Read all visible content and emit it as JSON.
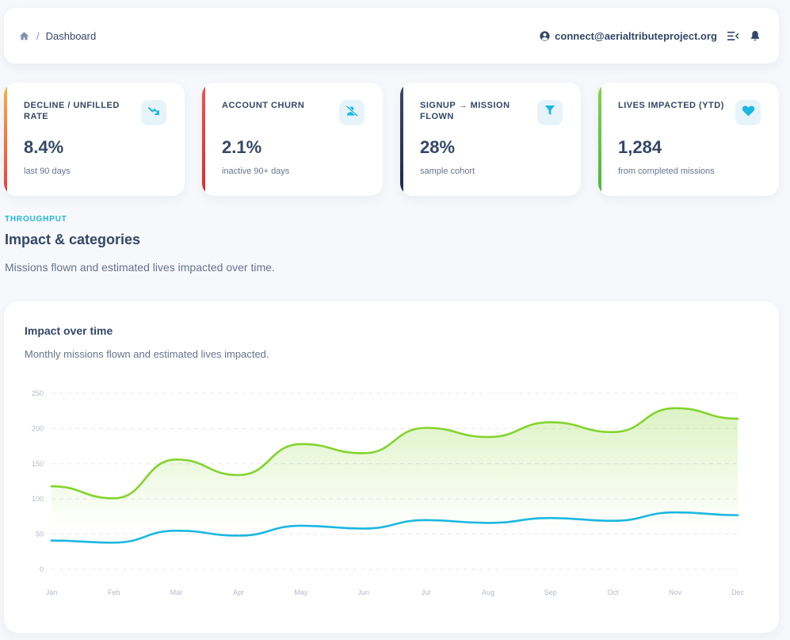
{
  "navbar": {
    "breadcrumb_current": "Dashboard",
    "breadcrumb_sep": "/",
    "user_email": "connect@aerialtributeproject.org",
    "icons": {
      "home": "home-icon",
      "user": "user-circle-icon",
      "menu": "menu-collapse-icon",
      "bell": "bell-icon"
    }
  },
  "stats": [
    {
      "label": "DECLINE / UNFILLED RATE",
      "value": "8.4%",
      "sub": "last 90 days",
      "icon": "trending-down-icon",
      "accent_top": "#fbb140",
      "accent_bottom": "#ea3d3d"
    },
    {
      "label": "ACCOUNT CHURN",
      "value": "2.1%",
      "sub": "inactive 90+ days",
      "icon": "user-slash-icon",
      "accent_top": "#ef5350",
      "accent_bottom": "#d32f2f"
    },
    {
      "label": "SIGNUP → MISSION FLOWN",
      "value": "28%",
      "sub": "sample cohort",
      "icon": "funnel-icon",
      "accent_top": "#3a4a6b",
      "accent_bottom": "#1a2a4f"
    },
    {
      "label": "LIVES IMPACTED (YTD)",
      "value": "1,284",
      "sub": "from completed missions",
      "icon": "heart-icon",
      "accent_top": "#84d34a",
      "accent_bottom": "#45b83a"
    }
  ],
  "section": {
    "eyebrow": "THROUGHPUT",
    "title": "Impact & categories",
    "description": "Missions flown and estimated lives impacted over time."
  },
  "chart_card": {
    "title": "Impact over time",
    "subtitle": "Monthly missions flown and estimated lives impacted."
  },
  "colors": {
    "accent_cyan": "#1bb7e0",
    "accent_green": "#82d52c",
    "text_dark": "#344767",
    "text_muted": "#67748e"
  },
  "chart_data": {
    "type": "line",
    "categories": [
      "Jan",
      "Feb",
      "Mar",
      "Apr",
      "May",
      "Jun",
      "Jul",
      "Aug",
      "Sep",
      "Oct",
      "Nov",
      "Dec"
    ],
    "series": [
      {
        "values": [
          118,
          101,
          156,
          134,
          178,
          165,
          201,
          188,
          209,
          195,
          229,
          214
        ],
        "color": "#82d52c",
        "fill": true
      },
      {
        "values": [
          41,
          38,
          55,
          48,
          62,
          58,
          70,
          66,
          73,
          69,
          81,
          77
        ],
        "color": "#1bb7e0",
        "fill": false
      }
    ],
    "yticks": [
      0,
      50,
      100,
      150,
      200,
      250
    ],
    "ylim": [
      0,
      250
    ],
    "grid": true,
    "legend": "none",
    "xlabel": "",
    "ylabel": ""
  }
}
